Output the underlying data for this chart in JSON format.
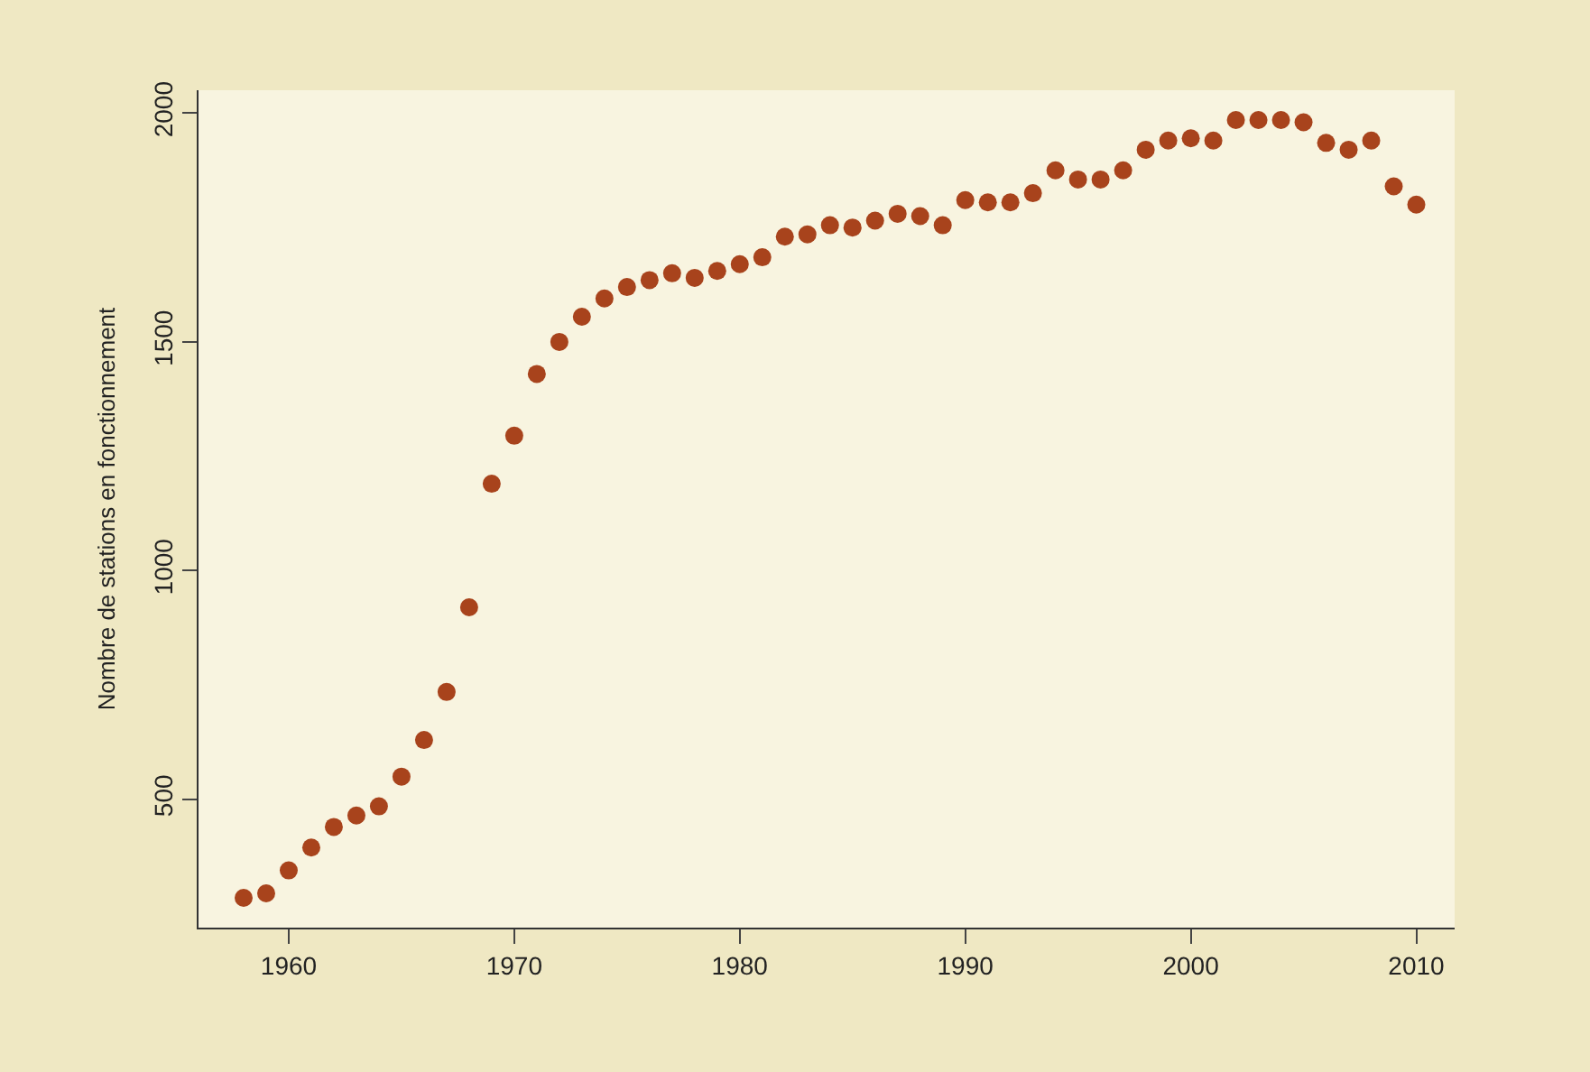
{
  "chart_data": {
    "type": "scatter",
    "ylabel": "Nombre de stations en fonctionnement",
    "x": [
      1958,
      1959,
      1960,
      1961,
      1962,
      1963,
      1964,
      1965,
      1966,
      1967,
      1968,
      1969,
      1970,
      1971,
      1972,
      1973,
      1974,
      1975,
      1976,
      1977,
      1978,
      1979,
      1980,
      1981,
      1982,
      1983,
      1984,
      1985,
      1986,
      1987,
      1988,
      1989,
      1990,
      1991,
      1992,
      1993,
      1994,
      1995,
      1996,
      1997,
      1998,
      1999,
      2000,
      2001,
      2002,
      2003,
      2004,
      2005,
      2006,
      2007,
      2008,
      2009,
      2010
    ],
    "series": [
      {
        "color": "#a8431c",
        "values": [
          285,
          295,
          345,
          395,
          440,
          465,
          485,
          550,
          630,
          735,
          920,
          1190,
          1295,
          1430,
          1500,
          1555,
          1595,
          1620,
          1635,
          1650,
          1640,
          1655,
          1670,
          1685,
          1730,
          1735,
          1755,
          1750,
          1765,
          1780,
          1775,
          1755,
          1810,
          1805,
          1805,
          1825,
          1875,
          1855,
          1855,
          1875,
          1920,
          1940,
          1945,
          1940,
          1985,
          1985,
          1985,
          1980,
          1935,
          1920,
          1940,
          1840,
          1800
        ]
      }
    ],
    "xlim": [
      1956,
      2011.7
    ],
    "ylim": [
      220,
      2050
    ],
    "xticks": [
      1960,
      1970,
      1980,
      1990,
      2000,
      2010
    ],
    "yticks": [
      500,
      1000,
      1500,
      2000
    ],
    "marker": "circle",
    "grid": false,
    "legend": false
  }
}
